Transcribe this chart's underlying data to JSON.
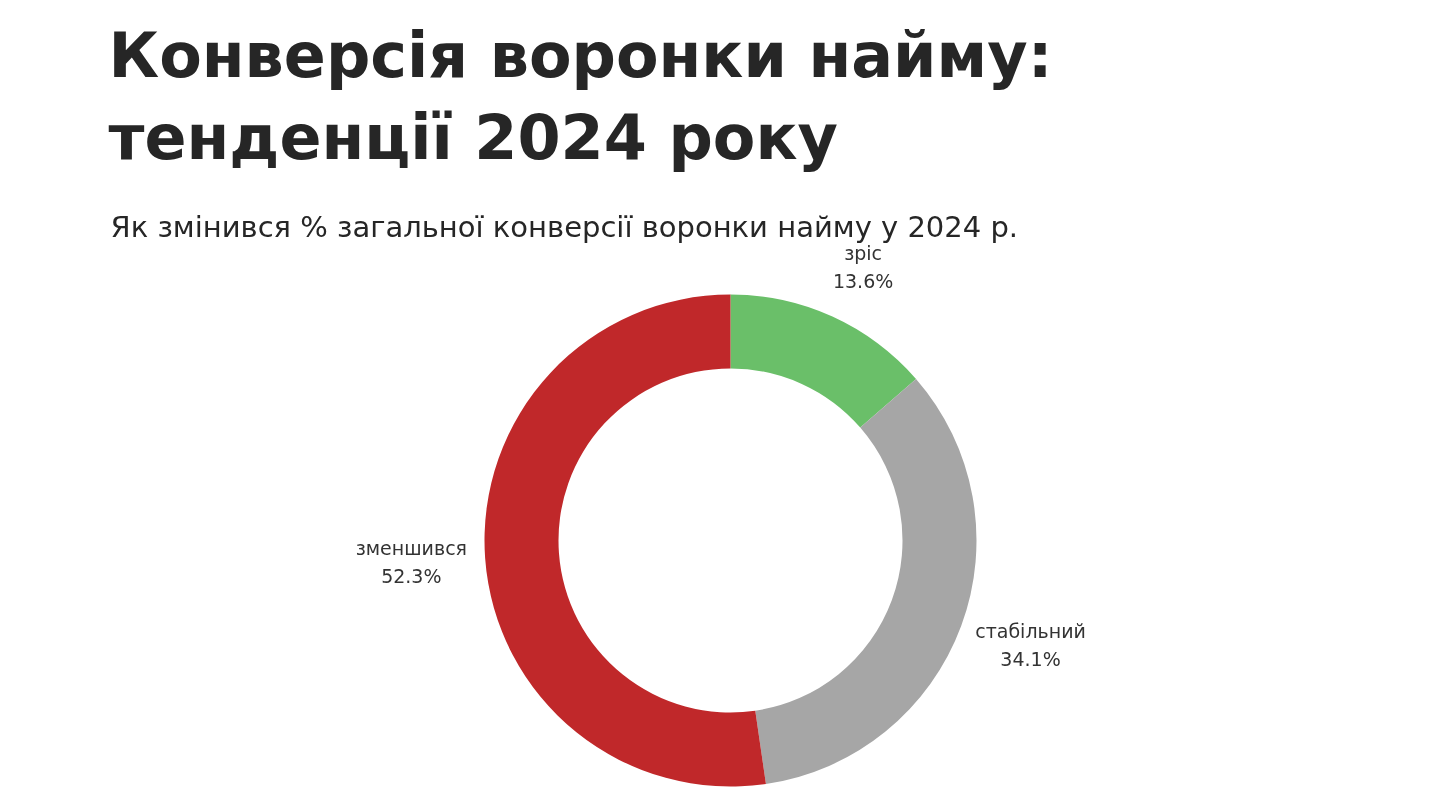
{
  "chart_data": {
    "type": "donut",
    "title": "Конверсія воронки найму: тенденції 2024 року",
    "subtitle": "Як змінився % загальної конверсії воронки найму у 2024 р.",
    "categories": [
      "зріс",
      "стабільний",
      "зменшився"
    ],
    "values": [
      13.6,
      34.1,
      52.3
    ],
    "colors": [
      "#6abf69",
      "#a6a6a6",
      "#c0282a"
    ],
    "value_labels": [
      "13.6%",
      "34.1%",
      "52.3%"
    ],
    "data_labels": true
  }
}
